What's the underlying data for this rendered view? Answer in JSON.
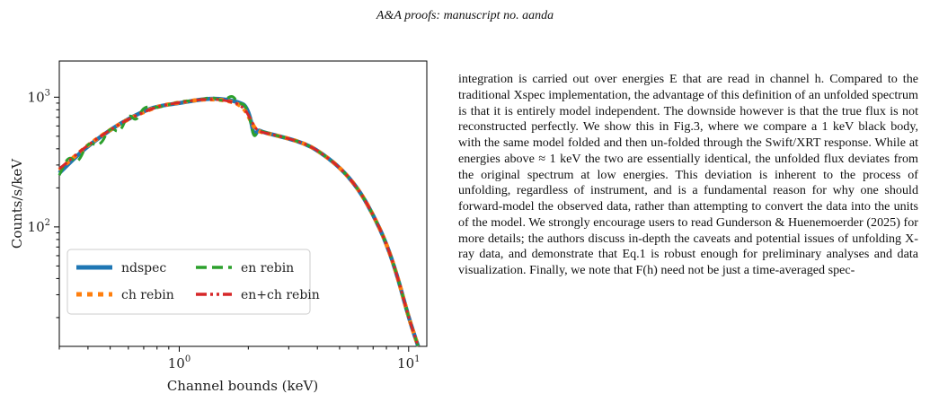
{
  "header": {
    "text": "A&A proofs: manuscript no. aanda"
  },
  "chart_data": {
    "type": "line",
    "xlabel": "Channel bounds (keV)",
    "ylabel": "Counts/s/keV",
    "xscale": "log",
    "yscale": "log",
    "xlim": [
      0.3,
      12
    ],
    "ylim": [
      12,
      1900
    ],
    "xticks": [
      {
        "v": 1,
        "label": "10^0"
      },
      {
        "v": 10,
        "label": "10^1"
      }
    ],
    "yticks": [
      {
        "v": 100,
        "label": "10^2"
      },
      {
        "v": 1000,
        "label": "10^3"
      }
    ],
    "legend_position": "lower left",
    "series": [
      {
        "name": "ndspec",
        "color": "#1f77b4",
        "style": "solid",
        "x": [
          0.3,
          0.35,
          0.4,
          0.5,
          0.6,
          0.7,
          0.8,
          1.0,
          1.2,
          1.4,
          1.6,
          1.75,
          1.85,
          1.95,
          2.05,
          2.12,
          2.2,
          2.3,
          2.5,
          3.0,
          3.5,
          4.0,
          5.0,
          6.0,
          7.0,
          8.0,
          9.0,
          10.0,
          11.0
        ],
        "y": [
          260,
          340,
          420,
          560,
          680,
          780,
          850,
          900,
          950,
          980,
          960,
          930,
          900,
          860,
          680,
          490,
          560,
          540,
          520,
          480,
          440,
          390,
          290,
          200,
          125,
          75,
          40,
          20,
          12
        ]
      },
      {
        "name": "ch rebin",
        "color": "#ff7f0e",
        "style": "dotted",
        "x": [
          0.3,
          0.4,
          0.5,
          0.6,
          0.8,
          1.0,
          1.3,
          1.6,
          1.9,
          2.1,
          2.2,
          2.5,
          3.0,
          3.5,
          4.0,
          5.0,
          6.0,
          7.0,
          8.0,
          9.0,
          10.0,
          11.0
        ],
        "y": [
          275,
          430,
          560,
          680,
          850,
          910,
          970,
          950,
          860,
          600,
          545,
          520,
          480,
          440,
          390,
          290,
          200,
          125,
          75,
          40,
          20,
          12
        ]
      },
      {
        "name": "en rebin",
        "color": "#2ca02c",
        "style": "dashed",
        "x": [
          0.3,
          0.33,
          0.36,
          0.4,
          0.45,
          0.5,
          0.55,
          0.6,
          0.65,
          0.7,
          0.8,
          1.0,
          1.2,
          1.4,
          1.55,
          1.7,
          1.8,
          1.95,
          2.05,
          2.12,
          2.2,
          2.5,
          3.0,
          3.5,
          4.0,
          5.0,
          6.0,
          7.0,
          8.0,
          9.0,
          10.0,
          11.0
        ],
        "y": [
          250,
          360,
          300,
          460,
          410,
          600,
          520,
          760,
          640,
          860,
          820,
          930,
          940,
          1010,
          920,
          1050,
          900,
          880,
          640,
          480,
          560,
          520,
          480,
          440,
          390,
          290,
          200,
          125,
          75,
          40,
          20,
          12
        ]
      },
      {
        "name": "en+ch rebin",
        "color": "#d62728",
        "style": "dashdot",
        "x": [
          0.3,
          0.4,
          0.5,
          0.6,
          0.8,
          1.0,
          1.3,
          1.6,
          1.9,
          2.1,
          2.2,
          2.5,
          3.0,
          3.5,
          4.0,
          5.0,
          6.0,
          7.0,
          8.0,
          9.0,
          10.0,
          11.0
        ],
        "y": [
          280,
          430,
          560,
          680,
          850,
          910,
          970,
          950,
          860,
          620,
          545,
          520,
          480,
          440,
          390,
          290,
          200,
          125,
          75,
          40,
          20,
          12
        ]
      }
    ]
  },
  "text": {
    "p1": "integration is carried out over energies E that are read in channel h. Compared to the traditional Xspec implementation, the advantage of this definition of an unfolded spectrum is that it is entirely model independent. The downside however is that the true flux is not reconstructed perfectly. We show this in Fig.3, where we compare a 1 keV black body, with the same model folded and then un-folded through the Swift/XRT response. While at energies above ≈ 1 keV the two are essentially identical, the unfolded flux deviates from the original spectrum at low energies. This deviation is inherent to the process of unfolding, regardless of instrument, and is a fundamental reason for why one should forward-model the observed data, rather than attempting to convert the data into the units of the model. We strongly encourage users to read Gunderson & Huenemoerder (2025) for more details; the authors discuss in-depth the caveats and potential issues of unfolding X-ray data, and demonstrate that Eq.1 is robust enough for preliminary analyses and data visualization. Finally, we note that F(h) need not be just a time-averaged spec-"
  }
}
